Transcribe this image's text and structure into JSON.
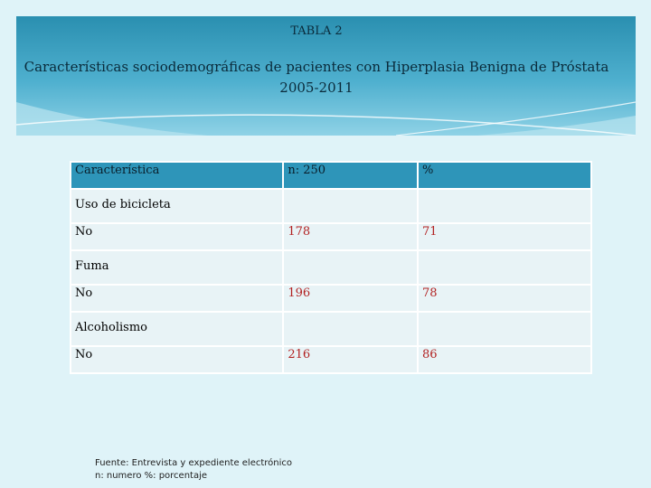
{
  "header": {
    "table_label": "TABLA 2",
    "title_line1": "Características sociodemográficas de pacientes con Hiperplasia Benigna de Próstata",
    "title_line2": "2005-2011"
  },
  "table": {
    "headers": [
      "Característica",
      "n: 250",
      "%"
    ],
    "rows": [
      {
        "label": "Uso de bicicleta",
        "n": "",
        "pct": ""
      },
      {
        "label": "No",
        "n": "178",
        "pct": "71"
      },
      {
        "label": "Fuma",
        "n": "",
        "pct": ""
      },
      {
        "label": "No",
        "n": "196",
        "pct": "78"
      },
      {
        "label": "Alcoholismo",
        "n": "",
        "pct": ""
      },
      {
        "label": "No",
        "n": "216",
        "pct": "86"
      }
    ]
  },
  "footnote": {
    "line1": "Fuente: Entrevista y expediente electrónico",
    "line2": "n: numero %: porcentaje"
  }
}
